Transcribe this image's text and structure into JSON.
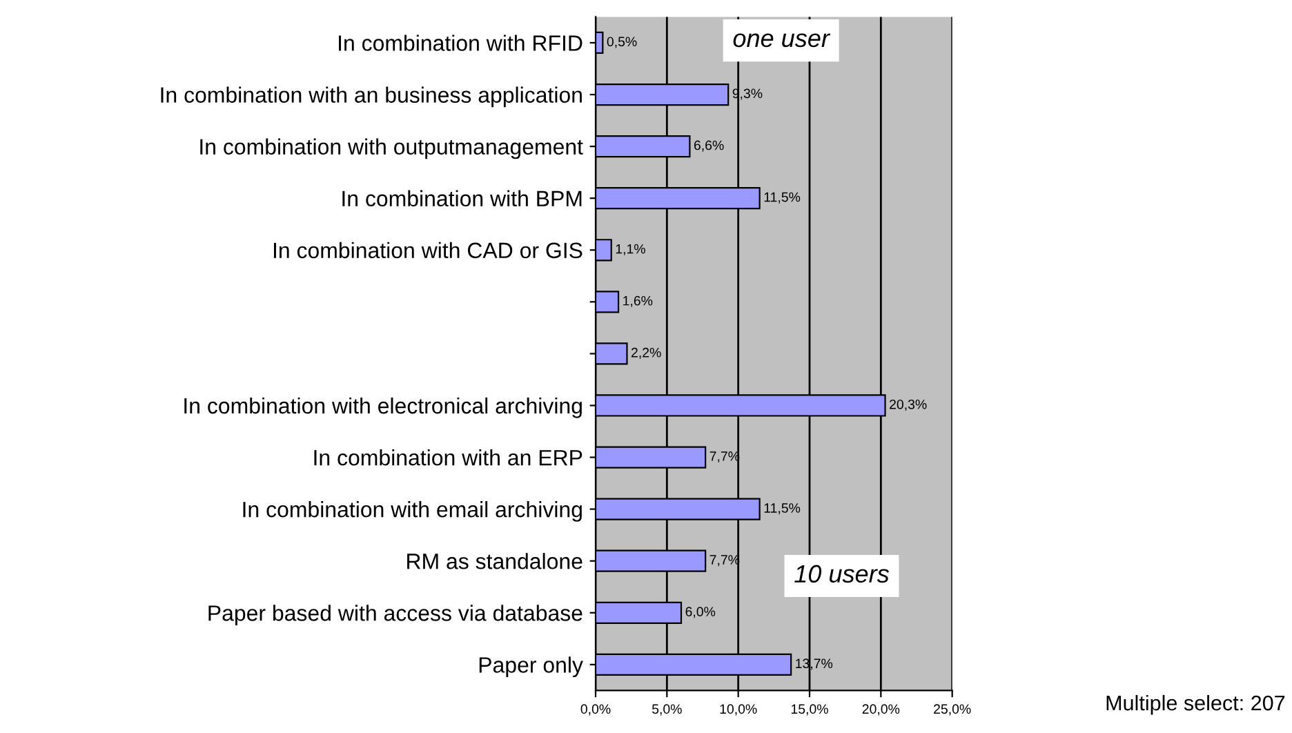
{
  "chart_data": {
    "type": "bar",
    "orientation": "horizontal",
    "categories": [
      "In combination with RFID",
      "In combination with an business application",
      "In combination with outputmanagement",
      "In combination with BPM",
      "In combination with CAD or GIS",
      null,
      null,
      "In combination with electronical archiving",
      "In combination with an ERP",
      "In combination with email archiving",
      "RM as standalone",
      "Paper based with access via database",
      "Paper only"
    ],
    "values": [
      0.5,
      9.3,
      6.6,
      11.5,
      1.1,
      1.6,
      2.2,
      20.3,
      7.7,
      11.5,
      7.7,
      6.0,
      13.7
    ],
    "value_labels": [
      "0,5%",
      "9,3%",
      "6,6%",
      "11,5%",
      "1,1%",
      "1,6%",
      "2,2%",
      "20,3%",
      "7,7%",
      "11,5%",
      "7,7%",
      "6,0%",
      "13,7%"
    ],
    "color": "#9999ff",
    "xlim": [
      0,
      25
    ],
    "xticks": [
      {
        "value": 0,
        "label": "0,0%"
      },
      {
        "value": 5,
        "label": "5,0%"
      },
      {
        "value": 10,
        "label": "10,0%"
      },
      {
        "value": 15,
        "label": "15,0%"
      },
      {
        "value": 20,
        "label": "20,0%"
      },
      {
        "value": 25,
        "label": "25,0%"
      }
    ],
    "grid": "x",
    "annotations": [
      "one user",
      "10 users",
      "Multiple select: 207"
    ]
  }
}
